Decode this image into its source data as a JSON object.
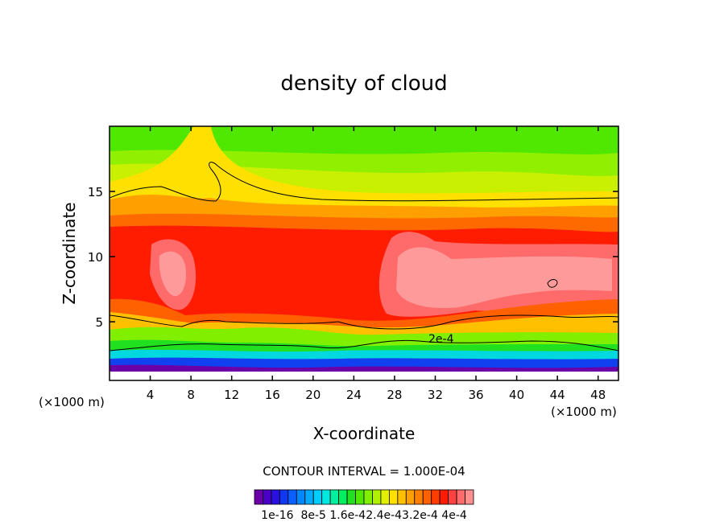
{
  "chart_data": {
    "type": "heatmap",
    "title": "density of cloud",
    "xlabel": "X-coordinate",
    "ylabel": "Z-coordinate",
    "x_unit": "(×1000 m)",
    "x_unit_right": "(×1000 m)",
    "xlim": [
      0,
      50
    ],
    "ylim": [
      0.5,
      20
    ],
    "x_ticks": [
      "4",
      "8",
      "12",
      "16",
      "20",
      "24",
      "28",
      "32",
      "36",
      "40",
      "44",
      "48"
    ],
    "x_tick_values": [
      4,
      8,
      12,
      16,
      20,
      24,
      28,
      32,
      36,
      40,
      44,
      48
    ],
    "y_ticks": [
      "5",
      "10",
      "15"
    ],
    "y_tick_values": [
      5,
      10,
      15
    ],
    "contour_interval": "CONTOUR INTERVAL = 1.000E-04",
    "contour_label": "2e-4",
    "colorbar_labels": [
      "1e-16",
      "8e-5",
      "1.6e-4",
      "2.4e-4",
      "3.2e-4",
      "4e-4"
    ],
    "colorbar_label_text": "1e-16  8e-5 1.6e-42.4e-43.2e-4 4e-4",
    "colorbar_colors": [
      "#6b00a8",
      "#4b00c8",
      "#2a10e0",
      "#1038f0",
      "#0a60ff",
      "#0088ff",
      "#00aaff",
      "#00ccff",
      "#00e8e0",
      "#00f0a0",
      "#00ee60",
      "#20e020",
      "#50e800",
      "#80f000",
      "#b0f000",
      "#e0f000",
      "#ffe000",
      "#ffc000",
      "#ffa000",
      "#ff8000",
      "#ff6000",
      "#ff3c00",
      "#ff1c00",
      "#ff4040",
      "#ff6a6a",
      "#ff9090"
    ]
  }
}
